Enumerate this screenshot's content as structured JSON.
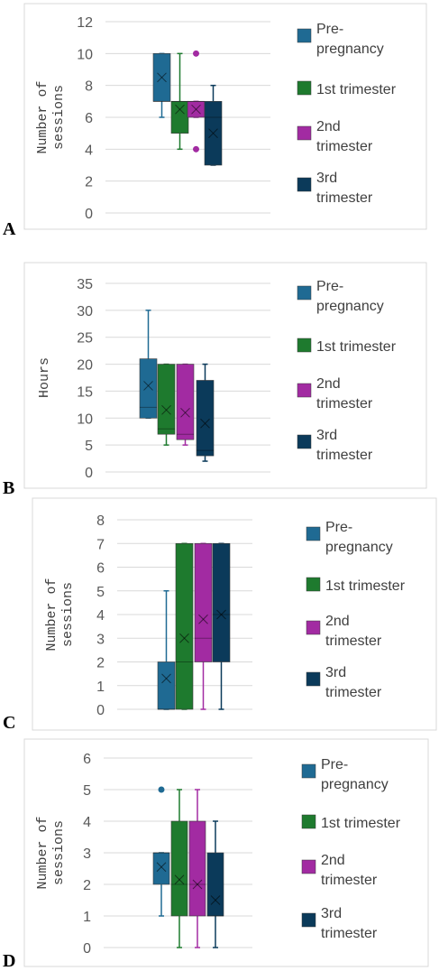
{
  "colors": {
    "pre_pregnancy": "#1f6a93",
    "first_trimester": "#1e7a2e",
    "second_trimester": "#a22ba2",
    "third_trimester": "#0b3a5a"
  },
  "chart_data": [
    {
      "panel_label": "A",
      "type": "box",
      "ylabel": "Number of sessions",
      "ylim": [
        0,
        12
      ],
      "yticks": [
        0,
        2,
        4,
        6,
        8,
        10,
        12
      ],
      "grid": true,
      "legend_position": "right",
      "series": [
        {
          "name": "Pre-pregnancy",
          "min": 6,
          "q1": 7,
          "median": 7,
          "q3": 10,
          "max": 10,
          "mean": 8.5,
          "outliers": []
        },
        {
          "name": "1st trimester",
          "min": 4,
          "q1": 5,
          "median": 7,
          "q3": 7,
          "max": 10,
          "mean": 6.5,
          "outliers": []
        },
        {
          "name": "2nd trimester",
          "min": 6,
          "q1": 6,
          "median": 7,
          "q3": 7,
          "max": 7,
          "mean": 6.5,
          "outliers": [
            10,
            4
          ]
        },
        {
          "name": "3rd trimester",
          "min": 3,
          "q1": 3,
          "median": 6,
          "q3": 7,
          "max": 8,
          "mean": 5,
          "outliers": []
        }
      ]
    },
    {
      "panel_label": "B",
      "type": "box",
      "ylabel": "Hours",
      "ylim": [
        0,
        35
      ],
      "yticks": [
        0,
        5,
        10,
        15,
        20,
        25,
        30,
        35
      ],
      "grid": true,
      "legend_position": "right",
      "series": [
        {
          "name": "Pre-pregnancy",
          "min": 10,
          "q1": 10,
          "median": 12,
          "q3": 21,
          "max": 30,
          "mean": 16,
          "outliers": []
        },
        {
          "name": "1st trimester",
          "min": 5,
          "q1": 7,
          "median": 8,
          "q3": 20,
          "max": 20,
          "mean": 11.5,
          "outliers": []
        },
        {
          "name": "2nd trimester",
          "min": 5,
          "q1": 6,
          "median": 7,
          "q3": 20,
          "max": 20,
          "mean": 11,
          "outliers": []
        },
        {
          "name": "3rd trimester",
          "min": 2,
          "q1": 3,
          "median": 4,
          "q3": 17,
          "max": 20,
          "mean": 9,
          "outliers": []
        }
      ]
    },
    {
      "panel_label": "C",
      "type": "box",
      "ylabel": "Number of sessions",
      "ylim": [
        0,
        8
      ],
      "yticks": [
        0,
        1,
        2,
        3,
        4,
        5,
        6,
        7,
        8
      ],
      "grid": true,
      "legend_position": "right",
      "series": [
        {
          "name": "Pre-pregnancy",
          "min": 0,
          "q1": 0,
          "median": 0,
          "q3": 2,
          "max": 5,
          "mean": 1.3,
          "outliers": []
        },
        {
          "name": "1st trimester",
          "min": 0,
          "q1": 0,
          "median": 2,
          "q3": 7,
          "max": 7,
          "mean": 3,
          "outliers": []
        },
        {
          "name": "2nd trimester",
          "min": 0,
          "q1": 2,
          "median": 3,
          "q3": 7,
          "max": 7,
          "mean": 3.8,
          "outliers": []
        },
        {
          "name": "3rd trimester",
          "min": 0,
          "q1": 2,
          "median": 4,
          "q3": 7,
          "max": 7,
          "mean": 4,
          "outliers": []
        }
      ]
    },
    {
      "panel_label": "D",
      "type": "box",
      "ylabel": "Number of sessions",
      "ylim": [
        0,
        6
      ],
      "yticks": [
        0,
        1,
        2,
        3,
        4,
        5,
        6
      ],
      "grid": true,
      "legend_position": "right",
      "series": [
        {
          "name": "Pre-pregnancy",
          "min": 1,
          "q1": 2,
          "median": 3,
          "q3": 3,
          "max": 3,
          "mean": 2.55,
          "outliers": [
            5
          ]
        },
        {
          "name": "1st trimester",
          "min": 0,
          "q1": 1,
          "median": 2,
          "q3": 4,
          "max": 5,
          "mean": 2.15,
          "outliers": []
        },
        {
          "name": "2nd trimester",
          "min": 0,
          "q1": 1,
          "median": 2,
          "q3": 4,
          "max": 5,
          "mean": 2,
          "outliers": []
        },
        {
          "name": "3rd trimester",
          "min": 0,
          "q1": 1,
          "median": 1,
          "q3": 3,
          "max": 4,
          "mean": 1.5,
          "outliers": []
        }
      ]
    }
  ],
  "legend": {
    "pre_line1": "Pre-",
    "pre_line2": "pregnancy",
    "first": "1st trimester",
    "second_line1": "2nd",
    "second_line2": "trimester",
    "third_line1": "3rd",
    "third_line2": "trimester"
  }
}
